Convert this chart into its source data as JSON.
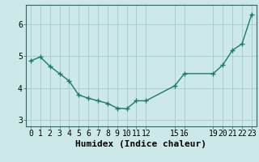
{
  "x": [
    0,
    1,
    2,
    3,
    4,
    5,
    6,
    7,
    8,
    9,
    10,
    11,
    12,
    15,
    16,
    19,
    20,
    21,
    22,
    23
  ],
  "y": [
    4.85,
    4.97,
    4.68,
    4.45,
    4.22,
    3.78,
    3.68,
    3.6,
    3.52,
    3.37,
    3.35,
    3.6,
    3.6,
    4.07,
    4.45,
    4.45,
    4.72,
    5.18,
    5.38,
    6.3
  ],
  "line_color": "#1a7a6e",
  "marker": "+",
  "bg_color": "#cce8e8",
  "grid_color": "#aacfcf",
  "xlabel": "Humidex (Indice chaleur)",
  "xlabel_fontsize": 8,
  "xticks": [
    0,
    1,
    2,
    3,
    4,
    5,
    6,
    7,
    8,
    9,
    10,
    11,
    12,
    15,
    16,
    19,
    20,
    21,
    22,
    23
  ],
  "yticks": [
    3,
    4,
    5,
    6
  ],
  "ylim": [
    2.8,
    6.6
  ],
  "xlim": [
    -0.5,
    23.5
  ],
  "tick_fontsize": 7,
  "title": ""
}
